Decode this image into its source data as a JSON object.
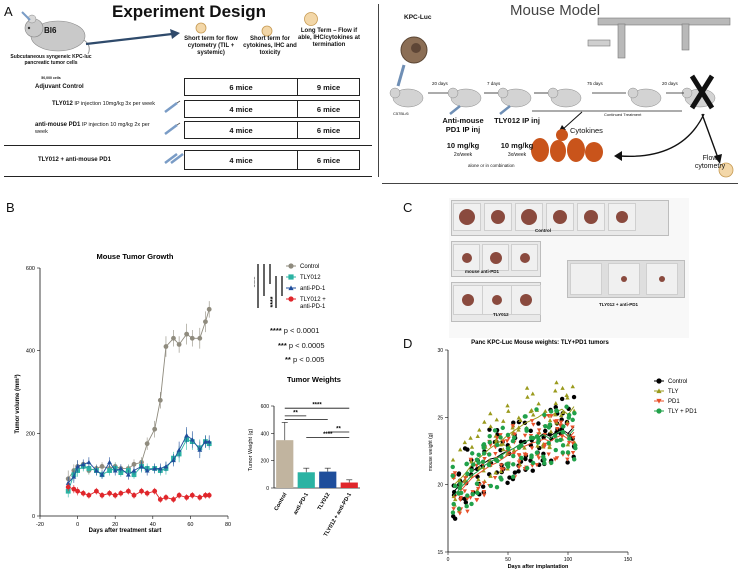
{
  "panel_letters": {
    "a": "A",
    "b": "B",
    "c": "C",
    "d": "D"
  },
  "panel_a_left": {
    "title": "Experiment Design",
    "mouse_label": "Bl6",
    "mouse_caption": "Subcutaneous syngeneic KPC-luc pancreatic tumor cells",
    "cell_count": "50,000 cells",
    "col_headers": [
      "Short term for flow cytometry (TIL + systemic)",
      "Short term for cytokines, IHC and toxicity",
      "Long Term – Flow if able, IHC/cytokines at termination"
    ],
    "rows": [
      {
        "name": "Adjuvant Control",
        "dose": "",
        "c1": "6 mice",
        "c2": "9 mice"
      },
      {
        "name": "TLY012",
        "dose": "IP injection 10mg/kg 3x per week",
        "c1": "4 mice",
        "c2": "6 mice"
      },
      {
        "name": "anti-mouse PD1",
        "dose": "IP injection 10 mg/kg 2x per week",
        "c1": "4 mice",
        "c2": "6 mice"
      },
      {
        "name": "TLY012 + anti-mouse PD1",
        "dose": "",
        "c1": "4 mice",
        "c2": "6 mice"
      }
    ]
  },
  "panel_a_right": {
    "title": "Mouse Model",
    "cell_label": "KPC-Luc",
    "strain": "C57BL/6",
    "intervals": [
      "20 days",
      "7 days",
      "75 days",
      "20 days"
    ],
    "continued": "Continued Treatment",
    "drug1": {
      "name": "Anti-mouse PD1 IP inj",
      "dose": "10 mg/kg",
      "freq": "2x/week"
    },
    "drug2": {
      "name": "TLY012 IP inj",
      "dose": "10 mg/kg",
      "freq": "3x/week"
    },
    "combo": "alone or in combination",
    "cytokines": "Cytokines",
    "flow": "Flow cytometry"
  },
  "panel_b": {
    "stat_legend": [
      {
        "stars": "****",
        "text": "p < 0.0001"
      },
      {
        "stars": "***",
        "text": "p < 0.0005"
      },
      {
        "stars": "**",
        "text": "p < 0.005"
      }
    ],
    "sig_labels": [
      "****",
      "****"
    ]
  },
  "panel_c": {
    "labels": [
      "Control",
      "mouse anti-PD1",
      "TLY012",
      "TLY012 + anti-PD1"
    ]
  },
  "chart_data": [
    {
      "type": "line",
      "title": "Mouse Tumor Growth",
      "xlabel": "Days after treatment start",
      "ylabel": "Tumor volume (mm³)",
      "xlim": [
        -20,
        80
      ],
      "ylim": [
        0,
        600
      ],
      "xticks": [
        -20,
        0,
        20,
        40,
        60,
        80
      ],
      "yticks": [
        0,
        200,
        400,
        600
      ],
      "legend_position": "top-right",
      "series": [
        {
          "name": "Control",
          "color": "#8f8b7e",
          "marker": "circle",
          "x": [
            -5,
            -2,
            0,
            3,
            6,
            10,
            13,
            17,
            20,
            23,
            27,
            30,
            34,
            37,
            41,
            44,
            47,
            51,
            54,
            58,
            61,
            65,
            68,
            70
          ],
          "y": [
            90,
            110,
            120,
            125,
            110,
            115,
            120,
            115,
            120,
            115,
            115,
            125,
            130,
            175,
            210,
            280,
            410,
            430,
            415,
            440,
            430,
            430,
            470,
            500
          ],
          "err": [
            20,
            15,
            15,
            10,
            10,
            10,
            10,
            10,
            10,
            10,
            10,
            12,
            12,
            15,
            20,
            20,
            25,
            20,
            20,
            25,
            20,
            25,
            25,
            20
          ]
        },
        {
          "name": "TLY012",
          "color": "#2bb3a3",
          "marker": "square",
          "x": [
            -5,
            -2,
            0,
            3,
            6,
            10,
            13,
            17,
            20,
            23,
            27,
            30,
            34,
            37,
            41,
            44,
            47,
            51,
            54,
            58,
            61,
            65,
            68,
            70
          ],
          "y": [
            60,
            100,
            110,
            120,
            115,
            110,
            100,
            110,
            115,
            105,
            110,
            100,
            120,
            115,
            115,
            110,
            115,
            140,
            150,
            185,
            180,
            165,
            180,
            175
          ],
          "err": [
            15,
            15,
            15,
            12,
            12,
            12,
            10,
            12,
            12,
            10,
            12,
            10,
            15,
            12,
            12,
            12,
            15,
            15,
            20,
            25,
            20,
            20,
            15,
            15
          ]
        },
        {
          "name": "anti-PD-1",
          "color": "#1f4e9b",
          "marker": "triangle",
          "x": [
            -5,
            -2,
            0,
            3,
            6,
            10,
            13,
            17,
            20,
            23,
            27,
            30,
            34,
            37,
            41,
            44,
            47,
            51,
            54,
            58,
            61,
            65,
            68,
            70
          ],
          "y": [
            80,
            95,
            120,
            125,
            130,
            110,
            100,
            130,
            110,
            115,
            100,
            110,
            120,
            110,
            115,
            115,
            120,
            135,
            160,
            195,
            185,
            160,
            180,
            180
          ],
          "err": [
            15,
            15,
            15,
            12,
            12,
            12,
            10,
            12,
            12,
            10,
            12,
            10,
            12,
            12,
            12,
            12,
            12,
            15,
            20,
            20,
            20,
            20,
            15,
            15
          ]
        },
        {
          "name": "TLY012 + anti-PD-1",
          "color": "#e0262b",
          "marker": "circle",
          "x": [
            -5,
            -2,
            0,
            3,
            6,
            10,
            13,
            17,
            20,
            23,
            27,
            30,
            34,
            37,
            41,
            44,
            47,
            51,
            54,
            58,
            61,
            65,
            68,
            70
          ],
          "y": [
            70,
            65,
            60,
            55,
            50,
            60,
            50,
            55,
            50,
            55,
            60,
            50,
            60,
            55,
            60,
            40,
            45,
            40,
            50,
            45,
            50,
            45,
            50,
            50
          ],
          "err": [
            10,
            10,
            10,
            8,
            8,
            8,
            8,
            8,
            8,
            8,
            8,
            8,
            8,
            8,
            8,
            8,
            8,
            8,
            8,
            8,
            8,
            8,
            8,
            8
          ]
        }
      ]
    },
    {
      "type": "bar",
      "title": "Tumor Weights",
      "ylabel": "Tumor Weight (g)",
      "ylim": [
        0,
        600
      ],
      "yticks": [
        0,
        200,
        400,
        600
      ],
      "categories": [
        "Control",
        "anti-PD-1",
        "TLY012",
        "TLY012 + anti-PD-1"
      ],
      "values": [
        350,
        115,
        120,
        40
      ],
      "errors": [
        130,
        30,
        25,
        20
      ],
      "colors": [
        "#c1b49f",
        "#2bb3a3",
        "#1f4e9b",
        "#e0262b"
      ],
      "significance": [
        {
          "from": 0,
          "to": 3,
          "label": "****"
        },
        {
          "from": 0,
          "to": 1,
          "label": "**"
        },
        {
          "from": 0,
          "to": 2,
          "label": ""
        },
        {
          "from": 2,
          "to": 3,
          "label": "**"
        },
        {
          "from": 1,
          "to": 3,
          "label": "****"
        }
      ]
    },
    {
      "type": "scatter",
      "title": "Panc KPC-Luc Mouse weights: TLY+PD1 tumors",
      "xlabel": "Days after implantation",
      "ylabel": "mouse weight (g)",
      "xlim": [
        0,
        150
      ],
      "ylim": [
        15,
        30
      ],
      "xticks": [
        0,
        50,
        100,
        150
      ],
      "yticks": [
        15,
        20,
        25,
        30
      ],
      "legend_position": "top-right",
      "series": [
        {
          "name": "Control",
          "color": "#000000",
          "marker": "circle",
          "x": [
            5,
            10,
            15,
            20,
            25,
            30,
            35,
            40,
            45,
            50,
            55,
            60,
            65,
            70,
            75,
            80,
            85,
            90,
            95,
            100,
            105
          ],
          "mean": [
            19.5,
            20.0,
            20.5,
            21.0,
            21.3,
            21.6,
            21.9,
            22.0,
            22.3,
            22.5,
            22.7,
            23.0,
            23.2,
            23.4,
            23.5,
            23.8,
            23.6,
            23.9,
            24.1,
            23.8,
            24.3
          ],
          "spread": 3.0
        },
        {
          "name": "TLY",
          "color": "#9a9a1c",
          "marker": "triangle",
          "x": [
            5,
            10,
            15,
            20,
            25,
            30,
            35,
            40,
            45,
            50,
            55,
            60,
            65,
            70,
            75,
            80,
            85,
            90,
            95,
            100,
            105
          ],
          "mean": [
            20.0,
            20.4,
            20.9,
            21.5,
            21.9,
            22.3,
            22.7,
            23.0,
            23.3,
            23.7,
            24.0,
            24.3,
            24.6,
            24.8,
            25.0,
            25.3,
            25.0,
            25.4,
            25.6,
            25.2,
            25.8
          ],
          "spread": 3.5
        },
        {
          "name": "PD1",
          "color": "#e8502a",
          "marker": "triangle-down",
          "x": [
            5,
            10,
            15,
            20,
            25,
            30,
            35,
            40,
            45,
            50,
            55,
            60,
            65,
            70,
            75,
            80,
            85,
            90,
            95,
            100,
            105
          ],
          "mean": [
            19.0,
            19.5,
            20.0,
            20.5,
            20.8,
            21.1,
            21.4,
            21.6,
            21.9,
            22.2,
            22.4,
            22.7,
            22.9,
            23.1,
            23.2,
            23.4,
            23.2,
            23.5,
            23.7,
            23.4,
            23.9
          ],
          "spread": 2.5
        },
        {
          "name": "TLY + PD1",
          "color": "#21a14a",
          "marker": "circle",
          "x": [
            5,
            10,
            15,
            20,
            25,
            30,
            35,
            40,
            45,
            50,
            55,
            60,
            65,
            70,
            75,
            80,
            85,
            90,
            95,
            100,
            105
          ],
          "mean": [
            19.2,
            19.7,
            20.2,
            20.7,
            21.0,
            21.4,
            21.7,
            21.9,
            22.2,
            22.5,
            22.7,
            23.0,
            23.2,
            23.4,
            23.5,
            23.7,
            23.4,
            23.8,
            24.0,
            23.6,
            24.1
          ],
          "spread": 2.8
        }
      ]
    }
  ]
}
